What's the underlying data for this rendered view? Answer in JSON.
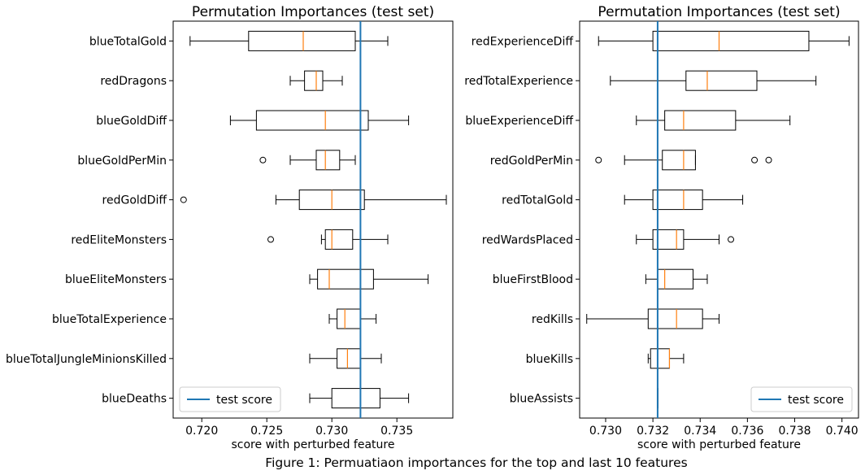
{
  "figure": {
    "caption": "Figure 1: Permuatiaon importances for the top and last 10 features"
  },
  "chart_data": [
    {
      "type": "boxplot",
      "orientation": "horizontal",
      "title": "Permutation Importances (test set)",
      "xlabel": "score with perturbed feature",
      "xlim": [
        0.7178,
        0.7393
      ],
      "xticks": [
        0.72,
        0.725,
        0.73,
        0.735
      ],
      "xtick_labels": [
        "0.720",
        "0.725",
        "0.730",
        "0.735"
      ],
      "reference_line": {
        "label": "test score",
        "value": 0.7322,
        "color": "#1f77b4"
      },
      "legend": {
        "placement": "lower-left",
        "entries": [
          "test score"
        ]
      },
      "box_color": "#000000",
      "median_color": "#ff7f0e",
      "categories": [
        "blueTotalGold",
        "redDragons",
        "blueGoldDiff",
        "blueGoldPerMin",
        "redGoldDiff",
        "redEliteMonsters",
        "blueEliteMonsters",
        "blueTotalExperience",
        "blueTotalJungleMinionsKilled",
        "blueDeaths"
      ],
      "boxes": [
        {
          "feature": "blueTotalGold",
          "whisker_low": 0.7191,
          "q1": 0.7236,
          "median": 0.7278,
          "q3": 0.7318,
          "whisker_high": 0.7343,
          "outliers": []
        },
        {
          "feature": "redDragons",
          "whisker_low": 0.7268,
          "q1": 0.7279,
          "median": 0.7288,
          "q3": 0.7293,
          "whisker_high": 0.7308,
          "outliers": []
        },
        {
          "feature": "blueGoldDiff",
          "whisker_low": 0.7222,
          "q1": 0.7242,
          "median": 0.7295,
          "q3": 0.7328,
          "whisker_high": 0.7359,
          "outliers": []
        },
        {
          "feature": "blueGoldPerMin",
          "whisker_low": 0.7268,
          "q1": 0.7288,
          "median": 0.7295,
          "q3": 0.7306,
          "whisker_high": 0.7318,
          "outliers": [
            0.7247
          ]
        },
        {
          "feature": "redGoldDiff",
          "whisker_low": 0.7257,
          "q1": 0.7275,
          "median": 0.73,
          "q3": 0.7325,
          "whisker_high": 0.7388,
          "outliers": [
            0.7186
          ]
        },
        {
          "feature": "redEliteMonsters",
          "whisker_low": 0.7292,
          "q1": 0.7295,
          "median": 0.73,
          "q3": 0.7316,
          "whisker_high": 0.7343,
          "outliers": [
            0.7253
          ]
        },
        {
          "feature": "blueEliteMonsters",
          "whisker_low": 0.7283,
          "q1": 0.7289,
          "median": 0.7298,
          "q3": 0.7332,
          "whisker_high": 0.7374,
          "outliers": []
        },
        {
          "feature": "blueTotalExperience",
          "whisker_low": 0.7298,
          "q1": 0.7304,
          "median": 0.731,
          "q3": 0.7322,
          "whisker_high": 0.7334,
          "outliers": []
        },
        {
          "feature": "blueTotalJungleMinionsKilled",
          "whisker_low": 0.7283,
          "q1": 0.7304,
          "median": 0.7312,
          "q3": 0.7322,
          "whisker_high": 0.7338,
          "outliers": []
        },
        {
          "feature": "blueDeaths",
          "whisker_low": 0.7283,
          "q1": 0.73,
          "median": 0.7322,
          "q3": 0.7337,
          "whisker_high": 0.7359,
          "outliers": []
        }
      ]
    },
    {
      "type": "boxplot",
      "orientation": "horizontal",
      "title": "Permutation Importances (test set)",
      "xlabel": "score with perturbed feature",
      "xlim": [
        0.7289,
        0.7407
      ],
      "xticks": [
        0.73,
        0.732,
        0.734,
        0.736,
        0.738,
        0.74
      ],
      "xtick_labels": [
        "0.730",
        "0.732",
        "0.734",
        "0.736",
        "0.738",
        "0.740"
      ],
      "reference_line": {
        "label": "test score",
        "value": 0.7322,
        "color": "#1f77b4"
      },
      "legend": {
        "placement": "lower-right",
        "entries": [
          "test score"
        ]
      },
      "box_color": "#000000",
      "median_color": "#ff7f0e",
      "categories": [
        "redExperienceDiff",
        "redTotalExperience",
        "blueExperienceDiff",
        "redGoldPerMin",
        "redTotalGold",
        "redWardsPlaced",
        "blueFirstBlood",
        "redKills",
        "blueKills",
        "blueAssists"
      ],
      "boxes": [
        {
          "feature": "redExperienceDiff",
          "whisker_low": 0.7297,
          "q1": 0.732,
          "median": 0.7348,
          "q3": 0.7386,
          "whisker_high": 0.7403,
          "outliers": []
        },
        {
          "feature": "redTotalExperience",
          "whisker_low": 0.7302,
          "q1": 0.7334,
          "median": 0.7343,
          "q3": 0.7364,
          "whisker_high": 0.7389,
          "outliers": []
        },
        {
          "feature": "blueExperienceDiff",
          "whisker_low": 0.7313,
          "q1": 0.7325,
          "median": 0.7333,
          "q3": 0.7355,
          "whisker_high": 0.7378,
          "outliers": []
        },
        {
          "feature": "redGoldPerMin",
          "whisker_low": 0.7308,
          "q1": 0.7324,
          "median": 0.7333,
          "q3": 0.7338,
          "whisker_high": 0.7338,
          "outliers": [
            0.7297,
            0.7363,
            0.7369
          ]
        },
        {
          "feature": "redTotalGold",
          "whisker_low": 0.7308,
          "q1": 0.732,
          "median": 0.7333,
          "q3": 0.7341,
          "whisker_high": 0.7358,
          "outliers": []
        },
        {
          "feature": "redWardsPlaced",
          "whisker_low": 0.7313,
          "q1": 0.732,
          "median": 0.733,
          "q3": 0.7333,
          "whisker_high": 0.7348,
          "outliers": [
            0.7353
          ]
        },
        {
          "feature": "blueFirstBlood",
          "whisker_low": 0.7317,
          "q1": 0.7322,
          "median": 0.7325,
          "q3": 0.7337,
          "whisker_high": 0.7343,
          "outliers": []
        },
        {
          "feature": "redKills",
          "whisker_low": 0.7292,
          "q1": 0.7318,
          "median": 0.733,
          "q3": 0.7341,
          "whisker_high": 0.7348,
          "outliers": []
        },
        {
          "feature": "blueKills",
          "whisker_low": 0.7318,
          "q1": 0.7319,
          "median": 0.7327,
          "q3": 0.7327,
          "whisker_high": 0.7333,
          "outliers": []
        },
        {
          "feature": "blueAssists",
          "whisker_low": 0.7322,
          "q1": 0.7322,
          "median": 0.7322,
          "q3": 0.7322,
          "whisker_high": 0.7322,
          "outliers": []
        }
      ]
    }
  ]
}
